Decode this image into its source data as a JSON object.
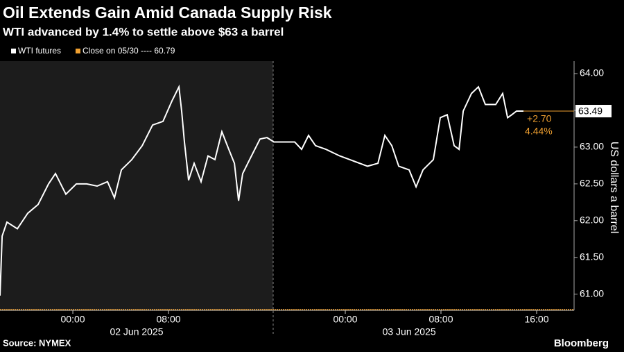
{
  "chart_data": {
    "type": "line",
    "title": "Oil Extends Gain Amid Canada Supply Risk",
    "subtitle": "WTI advanced by 1.4% to settle above $63 a barrel",
    "y_axis_label": "US dollars a barrel",
    "source": "Source: NYMEX",
    "brand": "Bloomberg",
    "series": [
      {
        "name": "WTI futures",
        "color": "#ffffff",
        "x": [
          -6.09,
          -5.91,
          -5.51,
          -4.64,
          -3.77,
          -2.9,
          -2.03,
          -1.45,
          -0.58,
          0.29,
          1.16,
          2.03,
          2.9,
          3.48,
          4.06,
          4.93,
          5.8,
          6.67,
          7.54,
          8.29,
          8.87,
          9.1,
          9.33,
          9.68,
          10.14,
          10.72,
          11.3,
          11.88,
          12.46,
          13.04,
          13.51,
          13.86,
          14.2,
          14.78,
          15.65,
          16.23,
          16.81,
          17.68,
          18.55,
          19.13,
          19.71,
          20.29,
          21.16,
          22.32,
          23.48,
          24.64,
          25.51,
          26.09,
          26.67,
          27.25,
          28.12,
          28.7,
          29.28,
          30.14,
          30.72,
          31.3,
          31.88,
          32.29,
          32.64,
          33.33,
          33.91,
          34.49,
          35.36,
          35.94,
          36.35,
          36.7,
          37.1,
          37.68
        ],
        "values": [
          60.98,
          61.79,
          61.98,
          61.89,
          62.1,
          62.22,
          62.5,
          62.64,
          62.36,
          62.5,
          62.5,
          62.47,
          62.53,
          62.31,
          62.69,
          62.83,
          63.02,
          63.3,
          63.35,
          63.63,
          63.82,
          63.49,
          63.07,
          62.55,
          62.78,
          62.53,
          62.88,
          62.83,
          63.21,
          62.97,
          62.78,
          62.27,
          62.64,
          62.83,
          63.11,
          63.13,
          63.07,
          63.07,
          63.07,
          62.97,
          63.16,
          63.02,
          62.97,
          62.88,
          62.81,
          62.74,
          62.78,
          63.16,
          63.02,
          62.74,
          62.69,
          62.46,
          62.69,
          62.83,
          63.4,
          63.44,
          63.02,
          62.97,
          63.49,
          63.73,
          63.82,
          63.58,
          63.58,
          63.73,
          63.4,
          63.44,
          63.49,
          63.49
        ]
      }
    ],
    "reference_line": {
      "name": "Close on 05/30 ---- 60.79",
      "value": 60.79,
      "color": "#f0a030"
    },
    "last_value": 63.49,
    "change": "+2.70",
    "change_pct": "4.44%",
    "session_break": 16.75,
    "xlim": [
      -6.09,
      41.91
    ],
    "ylim": [
      60.78,
      64.17
    ],
    "yticks": [
      {
        "value": 61,
        "label": "61.00"
      },
      {
        "value": 61.5,
        "label": "61.50"
      },
      {
        "value": 62,
        "label": "62.00"
      },
      {
        "value": 62.5,
        "label": "62.50"
      },
      {
        "value": 63,
        "label": "63.00"
      },
      {
        "value": 63.5,
        "label": "63.50"
      },
      {
        "value": 64,
        "label": "64.00"
      }
    ],
    "xticks": [
      {
        "value": 0,
        "label": "00:00"
      },
      {
        "value": 8,
        "label": "08:00"
      },
      {
        "value": 22.78,
        "label": "00:00"
      },
      {
        "value": 30.78,
        "label": "08:00"
      },
      {
        "value": 38.78,
        "label": "16:00"
      }
    ],
    "date_ticks": [
      {
        "value": 5.33,
        "label": "02 Jun 2025"
      },
      {
        "value": 28.12,
        "label": "03 Jun 2025"
      }
    ]
  }
}
